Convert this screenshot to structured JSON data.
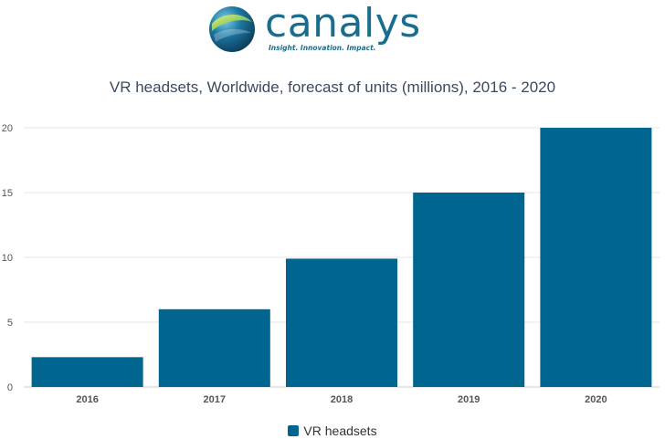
{
  "brand": {
    "name": "canalys",
    "tagline": "Insight. Innovation. Impact."
  },
  "colors": {
    "bar": "#00658f",
    "grid": "#e6e6e6",
    "axis_text": "#555555"
  },
  "chart_data": {
    "type": "bar",
    "title": "VR headsets, Worldwide, forecast of units (millions), 2016 - 2020",
    "xlabel": "",
    "ylabel": "",
    "categories": [
      "2016",
      "2017",
      "2018",
      "2019",
      "2020"
    ],
    "series": [
      {
        "name": "VR headsets",
        "values": [
          2.3,
          6.0,
          9.9,
          15.0,
          20.0
        ]
      }
    ],
    "ylim": [
      0,
      20
    ],
    "yticks": [
      0,
      5,
      10,
      15,
      20
    ],
    "grid": true,
    "legend": "bottom"
  }
}
